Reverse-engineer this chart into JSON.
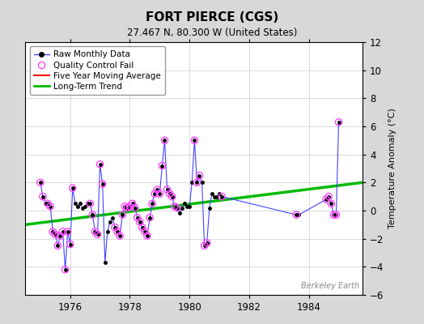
{
  "title": "FORT PIERCE (CGS)",
  "subtitle": "27.467 N, 80.300 W (United States)",
  "ylabel": "Temperature Anomaly (°C)",
  "attribution": "Berkeley Earth",
  "xlim": [
    1974.5,
    1985.8
  ],
  "ylim": [
    -6,
    12
  ],
  "yticks": [
    -6,
    -4,
    -2,
    0,
    2,
    4,
    6,
    8,
    10,
    12
  ],
  "xticks": [
    1976,
    1978,
    1980,
    1982,
    1984
  ],
  "background_color": "#d8d8d8",
  "plot_bg_color": "#ffffff",
  "raw_x": [
    1975.0,
    1975.083,
    1975.167,
    1975.25,
    1975.333,
    1975.417,
    1975.5,
    1975.583,
    1975.667,
    1975.75,
    1975.833,
    1975.917,
    1976.0,
    1976.083,
    1976.167,
    1976.25,
    1976.333,
    1976.417,
    1976.5,
    1976.583,
    1976.667,
    1976.75,
    1976.833,
    1976.917,
    1977.0,
    1977.083,
    1977.167,
    1977.25,
    1977.333,
    1977.417,
    1977.5,
    1977.583,
    1977.667,
    1977.75,
    1977.833,
    1977.917,
    1978.0,
    1978.083,
    1978.167,
    1978.25,
    1978.333,
    1978.417,
    1978.5,
    1978.583,
    1978.667,
    1978.75,
    1978.833,
    1978.917,
    1979.0,
    1979.083,
    1979.167,
    1979.25,
    1979.333,
    1979.417,
    1979.5,
    1979.583,
    1979.667,
    1979.75,
    1979.833,
    1979.917,
    1980.0,
    1980.083,
    1980.167,
    1980.25,
    1980.333,
    1980.417,
    1980.5,
    1980.583,
    1980.667,
    1980.75,
    1980.833,
    1980.917,
    1981.0,
    1981.083,
    1983.583,
    1983.667,
    1984.583,
    1984.667,
    1984.75,
    1984.833,
    1984.917,
    1985.0
  ],
  "raw_y": [
    2.0,
    1.0,
    0.5,
    0.5,
    0.3,
    -1.5,
    -1.7,
    -2.5,
    -1.8,
    -1.5,
    -4.2,
    -1.5,
    -2.4,
    1.6,
    0.5,
    0.3,
    0.5,
    0.2,
    0.3,
    0.5,
    0.5,
    -0.3,
    -1.5,
    -1.7,
    3.3,
    1.9,
    -3.7,
    -1.5,
    -0.8,
    -0.5,
    -1.2,
    -1.5,
    -1.8,
    -0.3,
    0.3,
    0.2,
    0.3,
    0.5,
    0.2,
    -0.5,
    -0.8,
    -1.2,
    -1.5,
    -1.8,
    -0.5,
    0.5,
    1.2,
    1.5,
    1.2,
    3.2,
    5.0,
    1.5,
    1.2,
    1.0,
    0.3,
    0.2,
    -0.2,
    0.2,
    0.5,
    0.3,
    0.3,
    2.0,
    5.0,
    2.0,
    2.5,
    2.0,
    -2.5,
    -2.3,
    0.2,
    1.2,
    1.0,
    1.0,
    1.2,
    1.0,
    -0.3,
    -0.3,
    0.8,
    1.0,
    0.5,
    -0.3,
    -0.3,
    6.3
  ],
  "qc_x": [
    1975.0,
    1975.083,
    1975.25,
    1975.333,
    1975.417,
    1975.5,
    1975.583,
    1975.667,
    1975.75,
    1975.833,
    1975.917,
    1976.0,
    1976.083,
    1976.667,
    1976.75,
    1976.833,
    1976.917,
    1977.0,
    1977.083,
    1977.5,
    1977.583,
    1977.667,
    1977.75,
    1977.833,
    1977.917,
    1978.0,
    1978.083,
    1978.167,
    1978.25,
    1978.333,
    1978.417,
    1978.5,
    1978.583,
    1978.667,
    1978.75,
    1978.833,
    1978.917,
    1979.0,
    1979.083,
    1979.167,
    1979.25,
    1979.333,
    1979.417,
    1979.5,
    1979.583,
    1980.167,
    1980.25,
    1980.333,
    1980.5,
    1980.583,
    1981.083,
    1983.583,
    1984.583,
    1984.667,
    1984.75,
    1984.833,
    1984.917,
    1985.0
  ],
  "qc_y": [
    2.0,
    1.0,
    0.5,
    0.3,
    -1.5,
    -1.7,
    -2.5,
    -1.8,
    -1.5,
    -4.2,
    -1.5,
    -2.4,
    1.6,
    0.5,
    -0.3,
    -1.5,
    -1.7,
    3.3,
    1.9,
    -1.2,
    -1.5,
    -1.8,
    -0.3,
    0.3,
    0.2,
    0.3,
    0.5,
    0.2,
    -0.5,
    -0.8,
    -1.2,
    -1.5,
    -1.8,
    -0.5,
    0.5,
    1.2,
    1.5,
    1.2,
    3.2,
    5.0,
    1.5,
    1.2,
    1.0,
    0.3,
    0.2,
    5.0,
    2.0,
    2.5,
    -2.5,
    -2.3,
    1.0,
    -0.3,
    0.8,
    1.0,
    0.5,
    -0.3,
    -0.3,
    6.3
  ],
  "trend_x": [
    1974.5,
    1985.8
  ],
  "trend_y": [
    -1.0,
    2.0
  ],
  "raw_line_color": "#4444ff",
  "raw_marker_color": "#000000",
  "qc_marker_color": "#ff44ff",
  "trend_color": "#00bb00",
  "moving_avg_color": "#ff0000",
  "grid_color": "#cccccc",
  "title_fontsize": 11,
  "subtitle_fontsize": 8.5,
  "legend_fontsize": 7.5,
  "ylabel_fontsize": 8
}
